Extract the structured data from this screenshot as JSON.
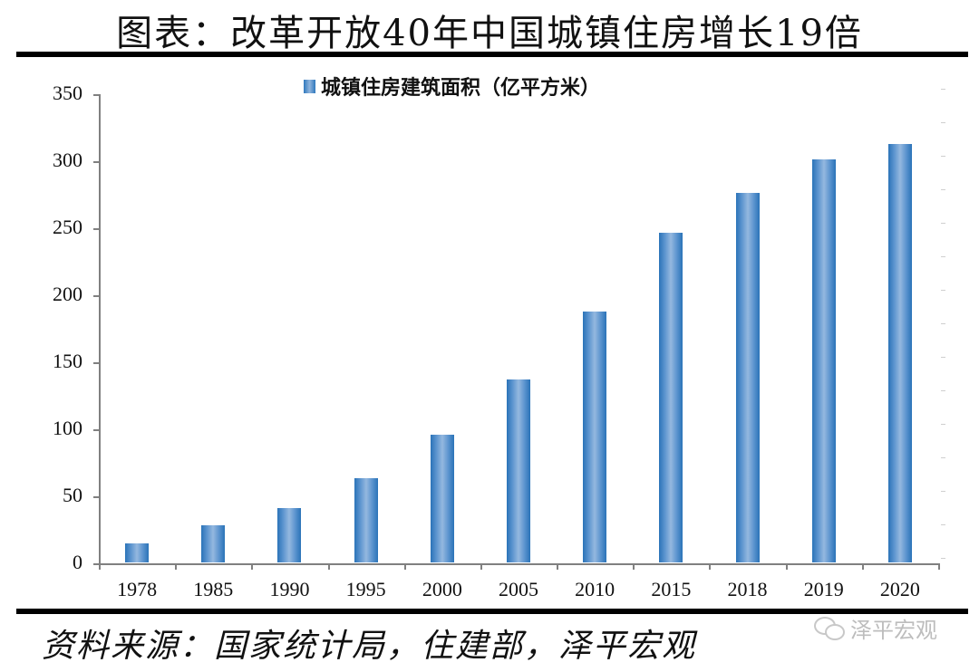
{
  "title": "图表：改革开放40年中国城镇住房增长19倍",
  "legend": {
    "label": "城镇住房建筑面积（亿平方米）",
    "color": "#2f78bd"
  },
  "source": "资料来源：国家统计局，住建部，泽平宏观",
  "watermark": {
    "icon": "wechat-icon",
    "text": "泽平宏观"
  },
  "chart_data": {
    "type": "bar",
    "title": "图表：改革开放40年中国城镇住房增长19倍",
    "xlabel": "",
    "ylabel": "",
    "categories": [
      "1978",
      "1985",
      "1990",
      "1995",
      "2000",
      "2005",
      "2010",
      "2015",
      "2018",
      "2019",
      "2020"
    ],
    "series": [
      {
        "name": "城镇住房建筑面积（亿平方米）",
        "values": [
          14.5,
          28,
          41,
          63,
          95.5,
          137,
          187.5,
          246.5,
          276.5,
          301,
          312.5
        ],
        "color": "#2f78bd"
      }
    ],
    "ylim": [
      0,
      350
    ],
    "yticks": [
      0,
      50,
      100,
      150,
      200,
      250,
      300,
      350
    ],
    "grid": false,
    "legend_position": "top"
  }
}
